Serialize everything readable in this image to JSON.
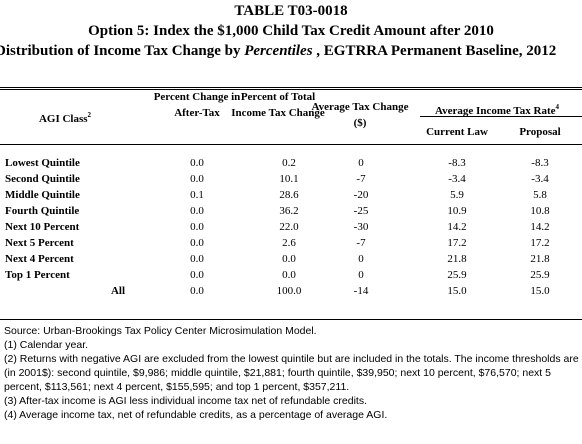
{
  "title": {
    "line1": "TABLE T03-0018",
    "line2": "Option 5: Index the $1,000 Child Tax Credit Amount after 2010",
    "line3_prefix": "Distribution of Income Tax Change by ",
    "line3_emph": "Percentiles",
    "line3_suffix": " , EGTRRA Permanent Baseline, 2012"
  },
  "headers": {
    "agi_class": "AGI Class",
    "agi_class_note": "2",
    "pct_change": "Percent Change in After-Tax",
    "pct_share": "Percent of Total Income Tax Change",
    "avg_change": "Average Tax Change ($)",
    "avg_rate": "Average Income Tax Rate",
    "avg_rate_note": "4",
    "current_law": "Current Law",
    "proposal": "Proposal"
  },
  "rows": [
    {
      "label": "Lowest Quintile",
      "pct": "0.0",
      "share": "0.2",
      "avg": "0",
      "cur": "-8.3",
      "prop": "-8.3"
    },
    {
      "label": "Second Quintile",
      "pct": "0.0",
      "share": "10.1",
      "avg": "-7",
      "cur": "-3.4",
      "prop": "-3.4"
    },
    {
      "label": "Middle Quintile",
      "pct": "0.1",
      "share": "28.6",
      "avg": "-20",
      "cur": "5.9",
      "prop": "5.8"
    },
    {
      "label": "Fourth Quintile",
      "pct": "0.0",
      "share": "36.2",
      "avg": "-25",
      "cur": "10.9",
      "prop": "10.8"
    },
    {
      "label": "Next 10 Percent",
      "pct": "0.0",
      "share": "22.0",
      "avg": "-30",
      "cur": "14.2",
      "prop": "14.2"
    },
    {
      "label": "Next 5 Percent",
      "pct": "0.0",
      "share": "2.6",
      "avg": "-7",
      "cur": "17.2",
      "prop": "17.2"
    },
    {
      "label": "Next 4 Percent",
      "pct": "0.0",
      "share": "0.0",
      "avg": "0",
      "cur": "21.8",
      "prop": "21.8"
    },
    {
      "label": "Top 1 Percent",
      "pct": "0.0",
      "share": "0.0",
      "avg": "0",
      "cur": "25.9",
      "prop": "25.9"
    },
    {
      "label": "All",
      "pct": "0.0",
      "share": "100.0",
      "avg": "-14",
      "cur": "15.0",
      "prop": "15.0"
    }
  ],
  "notes": [
    "Source: Urban-Brookings Tax Policy Center Microsimulation Model.",
    "(1) Calendar year.",
    "(2) Returns with negative AGI are excluded from the lowest quintile but are included in the totals. The income thresholds are (in 2001$): second quintile, $9,986; middle quintile, $21,881; fourth quintile, $39,950; next 10 percent, $76,570; next 5 percent, $113,561; next 4 percent, $155,595; and top 1 percent, $357,211.",
    "(3) After-tax income is AGI less individual income tax net of refundable credits.",
    "(4) Average income tax, net of refundable credits, as a percentage of average AGI."
  ]
}
